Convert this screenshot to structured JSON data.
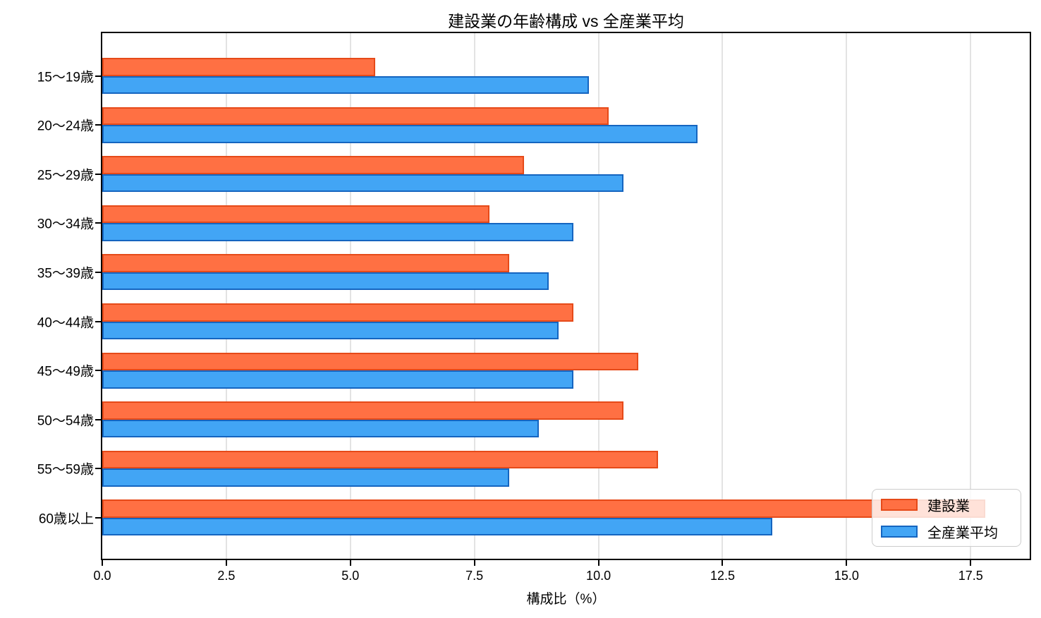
{
  "chart_data": {
    "type": "bar",
    "orientation": "horizontal",
    "title": "建設業の年齢構成 vs 全産業平均",
    "xlabel": "構成比（%）",
    "ylabel": "",
    "categories": [
      "15〜19歳",
      "20〜24歳",
      "25〜29歳",
      "30〜34歳",
      "35〜39歳",
      "40〜44歳",
      "45〜49歳",
      "50〜54歳",
      "55〜59歳",
      "60歳以上"
    ],
    "series": [
      {
        "name": "建設業",
        "color": "#FF7043",
        "edge_color": "#E64A19",
        "values": [
          5.5,
          10.2,
          8.5,
          7.8,
          8.2,
          9.5,
          10.8,
          10.5,
          11.2,
          17.8
        ]
      },
      {
        "name": "全産業平均",
        "color": "#42A5F5",
        "edge_color": "#1565C0",
        "values": [
          9.8,
          12.0,
          10.5,
          9.5,
          9.0,
          9.2,
          9.5,
          8.8,
          8.2,
          13.5
        ]
      }
    ],
    "xlim": [
      0,
      18.69
    ],
    "xticks": [
      0,
      2.5,
      5,
      7.5,
      10,
      12.5,
      15,
      17.5
    ],
    "xtick_labels": [
      "0.0",
      "2.5",
      "5.0",
      "7.5",
      "10.0",
      "12.5",
      "15.0",
      "17.5"
    ],
    "grid": true,
    "grid_axis": "x",
    "grid_color": "#e3e3e3",
    "legend_position": "lower right",
    "background": "#ffffff"
  }
}
